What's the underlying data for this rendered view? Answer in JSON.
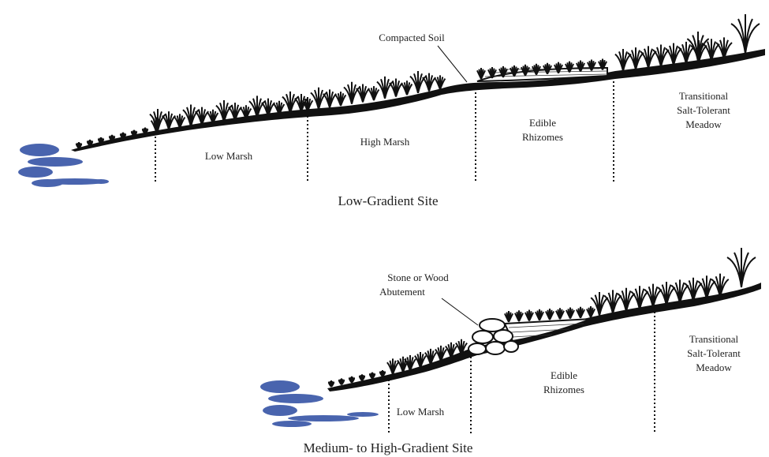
{
  "diagrams": [
    {
      "caption": "Low-Gradient Site",
      "callout": [
        "Compacted Soil"
      ],
      "zones": [
        {
          "lines": [
            "Low Marsh"
          ]
        },
        {
          "lines": [
            "High Marsh"
          ]
        },
        {
          "lines": [
            "Edible",
            "Rhizomes"
          ]
        },
        {
          "lines": [
            "Transitional",
            "Salt-Tolerant",
            "Meadow"
          ]
        }
      ]
    },
    {
      "caption": "Medium- to High-Gradient Site",
      "callout": [
        "Stone or Wood",
        "Abutement"
      ],
      "zones": [
        {
          "lines": [
            "Low Marsh"
          ]
        },
        {
          "lines": [
            "Edible",
            "Rhizomes"
          ]
        },
        {
          "lines": [
            "Transitional",
            "Salt-Tolerant",
            "Meadow"
          ]
        }
      ]
    }
  ]
}
